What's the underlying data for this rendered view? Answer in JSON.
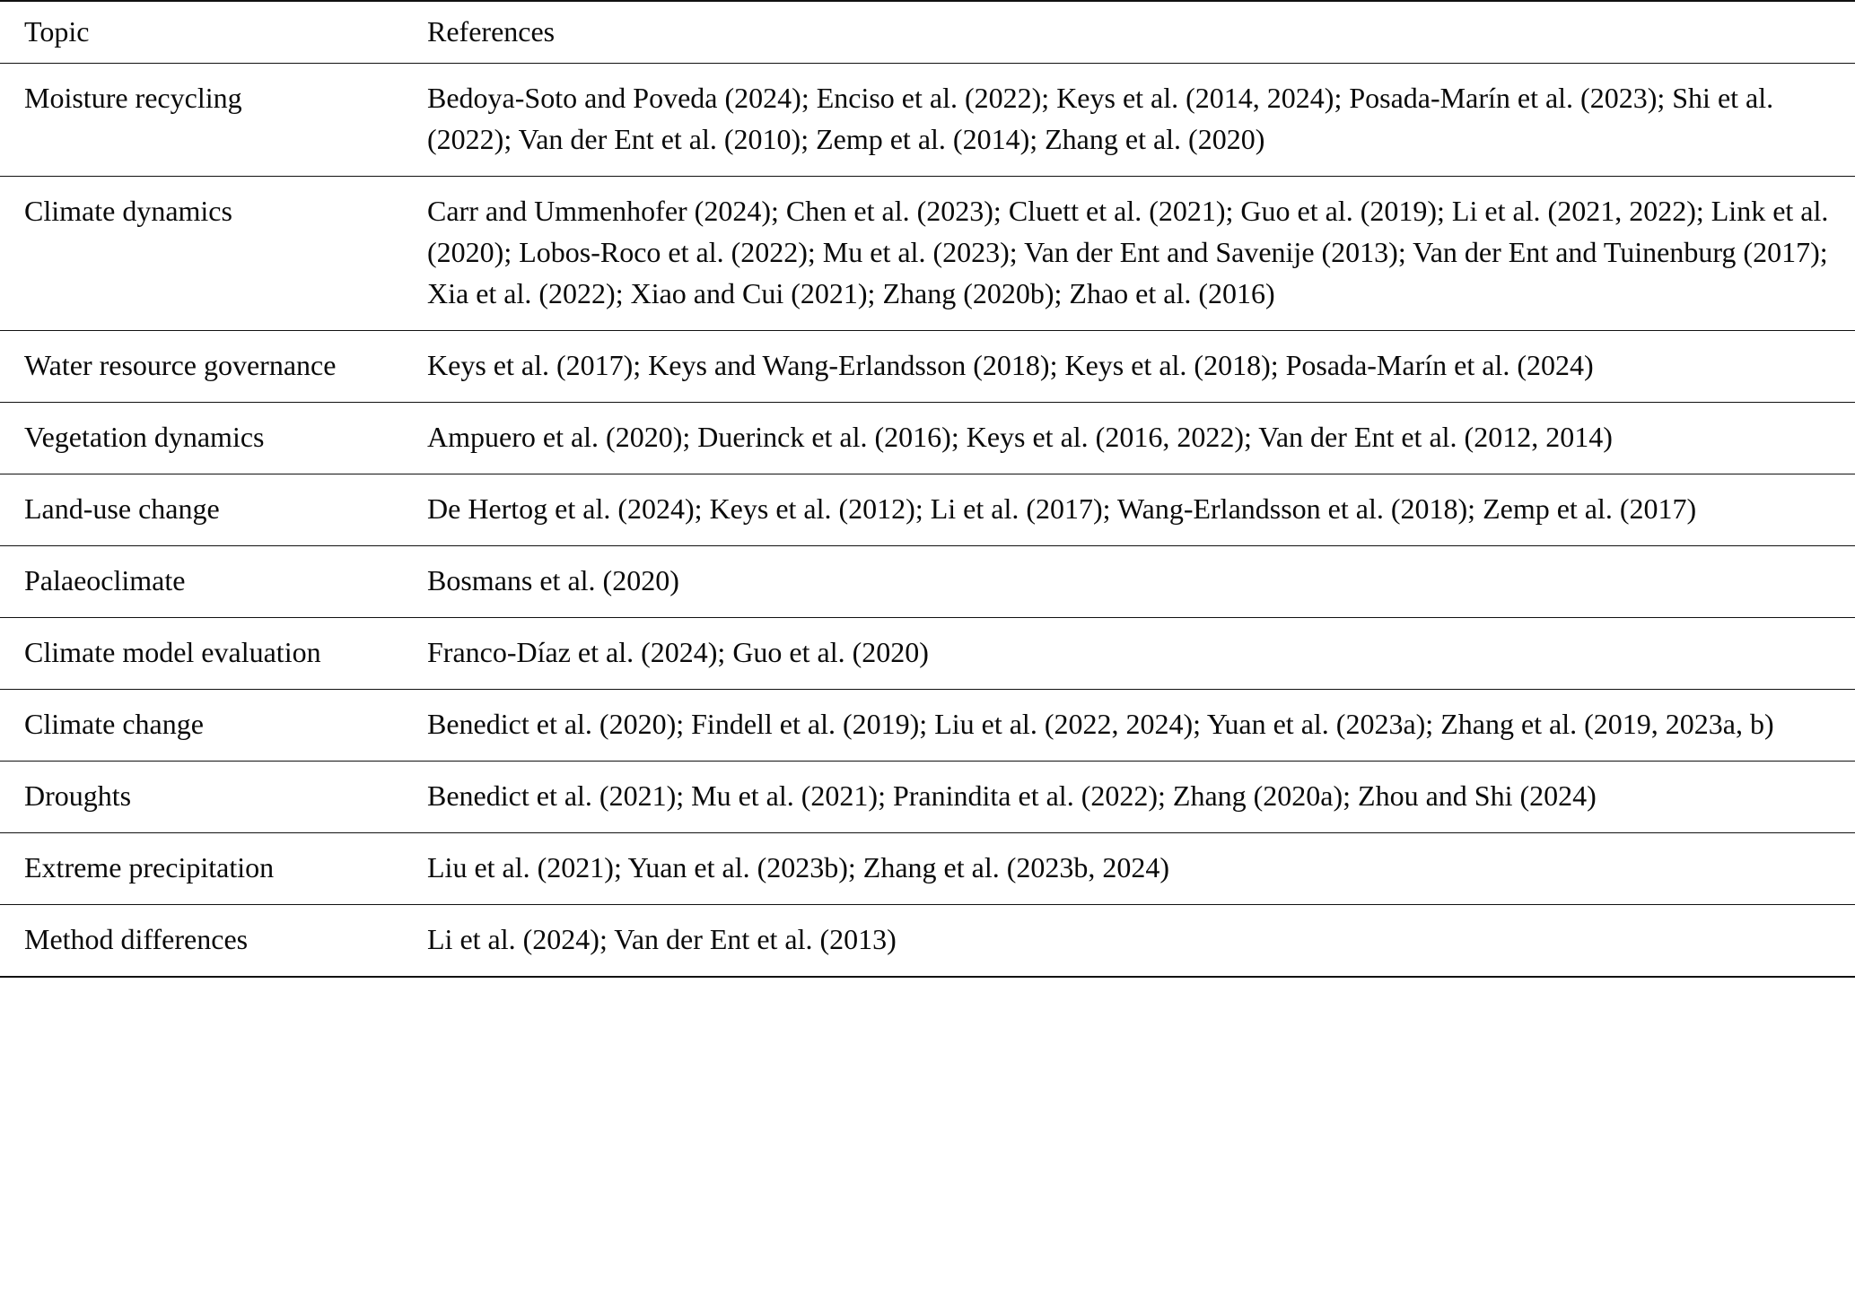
{
  "table": {
    "headers": [
      "Topic",
      "References"
    ],
    "rows": [
      {
        "topic": "Moisture recycling",
        "references": "Bedoya-Soto and Poveda (2024); Enciso et al. (2022); Keys et al. (2014, 2024); Posada-Marín et al. (2023); Shi et al. (2022); Van der Ent et al. (2010); Zemp et al. (2014); Zhang et al. (2020)"
      },
      {
        "topic": "Climate dynamics",
        "references": "Carr and Ummenhofer (2024); Chen et al. (2023); Cluett et al. (2021); Guo et al. (2019); Li et al. (2021, 2022); Link et al. (2020); Lobos-Roco et al. (2022); Mu et al. (2023); Van der Ent and Savenije (2013); Van der Ent and Tuinenburg (2017); Xia et al. (2022); Xiao and Cui (2021); Zhang (2020b); Zhao et al. (2016)"
      },
      {
        "topic": "Water resource governance",
        "references": "Keys et al. (2017); Keys and Wang-Erlandsson (2018); Keys et al. (2018); Posada-Marín et al. (2024)"
      },
      {
        "topic": "Vegetation dynamics",
        "references": "Ampuero et al. (2020); Duerinck et al. (2016); Keys et al. (2016, 2022); Van der Ent et al. (2012, 2014)"
      },
      {
        "topic": "Land-use change",
        "references": "De Hertog et al. (2024); Keys et al. (2012); Li et al. (2017); Wang-Erlandsson et al. (2018); Zemp et al. (2017)"
      },
      {
        "topic": "Palaeoclimate",
        "references": "Bosmans et al. (2020)"
      },
      {
        "topic": "Climate model evaluation",
        "references": "Franco-Díaz et al. (2024); Guo et al. (2020)"
      },
      {
        "topic": "Climate change",
        "references": "Benedict et al. (2020); Findell et al. (2019); Liu et al. (2022, 2024); Yuan et al. (2023a); Zhang et al. (2019, 2023a, b)"
      },
      {
        "topic": "Droughts",
        "references": "Benedict et al. (2021); Mu et al. (2021); Pranindita et al. (2022); Zhang (2020a); Zhou and Shi (2024)"
      },
      {
        "topic": "Extreme precipitation",
        "references": "Liu et al. (2021); Yuan et al. (2023b); Zhang et al. (2023b, 2024)"
      },
      {
        "topic": "Method differences",
        "references": "Li et al. (2024); Van der Ent et al. (2013)"
      }
    ]
  }
}
